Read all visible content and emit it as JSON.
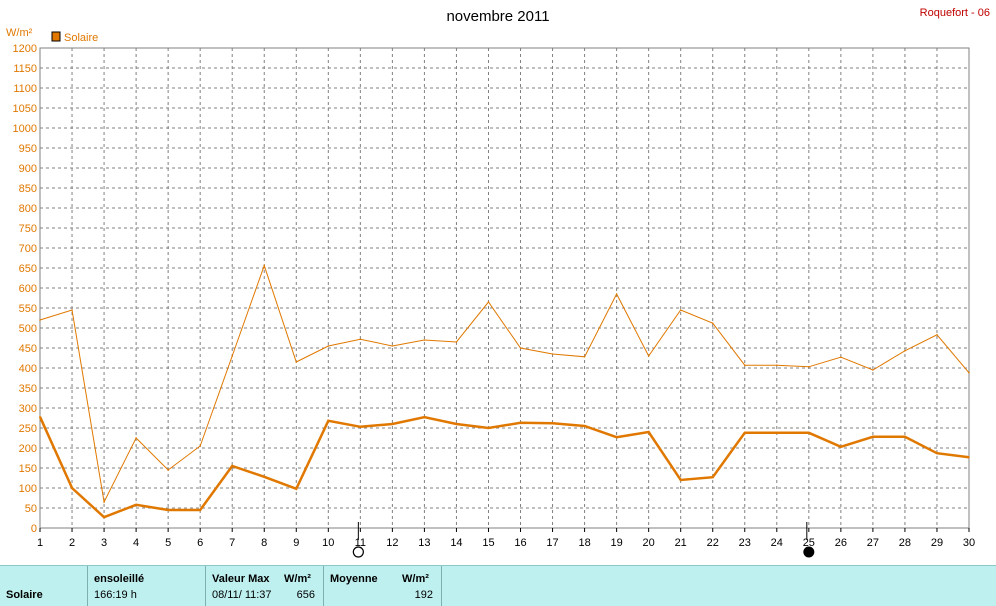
{
  "header": {
    "title": "novembre 2011",
    "station": "Roquefort - 06",
    "unit": "W/m²",
    "legend_label": "Solaire"
  },
  "colors": {
    "series": "#e07800",
    "station": "#c00000",
    "grid": "#808080",
    "stats_bg": "#bff0f0"
  },
  "chart_data": {
    "type": "line",
    "title": "novembre 2011",
    "ylabel": "W/m²",
    "xlabel": "",
    "xlim": [
      1,
      30
    ],
    "ylim": [
      0,
      1200
    ],
    "yticks": [
      0,
      50,
      100,
      150,
      200,
      250,
      300,
      350,
      400,
      450,
      500,
      550,
      600,
      650,
      700,
      750,
      800,
      850,
      900,
      950,
      1000,
      1050,
      1100,
      1150,
      1200
    ],
    "x": [
      1,
      2,
      3,
      4,
      5,
      6,
      7,
      8,
      9,
      10,
      11,
      12,
      13,
      14,
      15,
      16,
      17,
      18,
      19,
      20,
      21,
      22,
      23,
      24,
      25,
      26,
      27,
      28,
      29,
      30
    ],
    "grid": true,
    "legend_position": "top-left",
    "series": [
      {
        "name": "",
        "style": "max",
        "values": [
          520,
          545,
          65,
          225,
          145,
          205,
          430,
          656,
          415,
          455,
          472,
          455,
          470,
          465,
          565,
          450,
          435,
          428,
          585,
          430,
          545,
          512,
          407,
          407,
          403,
          427,
          395,
          443,
          483,
          388
        ]
      },
      {
        "name": "Solaire",
        "style": "mean",
        "values": [
          278,
          100,
          27,
          58,
          45,
          45,
          155,
          128,
          98,
          268,
          253,
          260,
          277,
          260,
          250,
          263,
          262,
          255,
          227,
          240,
          120,
          127,
          238,
          238,
          238,
          203,
          228,
          228,
          187,
          177
        ]
      }
    ],
    "moon_phases": [
      {
        "day": 11,
        "phase": "full"
      },
      {
        "day": 25,
        "phase": "new"
      }
    ]
  },
  "stats": {
    "row_label": "Solaire",
    "sun_header": "ensoleillé",
    "sun_value": "166:19 h",
    "max_header": "Valeur Max",
    "max_unit": "W/m²",
    "max_date": "08/11/  11:37",
    "max_value": "656",
    "mean_header": "Moyenne",
    "mean_unit": "W/m²",
    "mean_value": "192"
  }
}
